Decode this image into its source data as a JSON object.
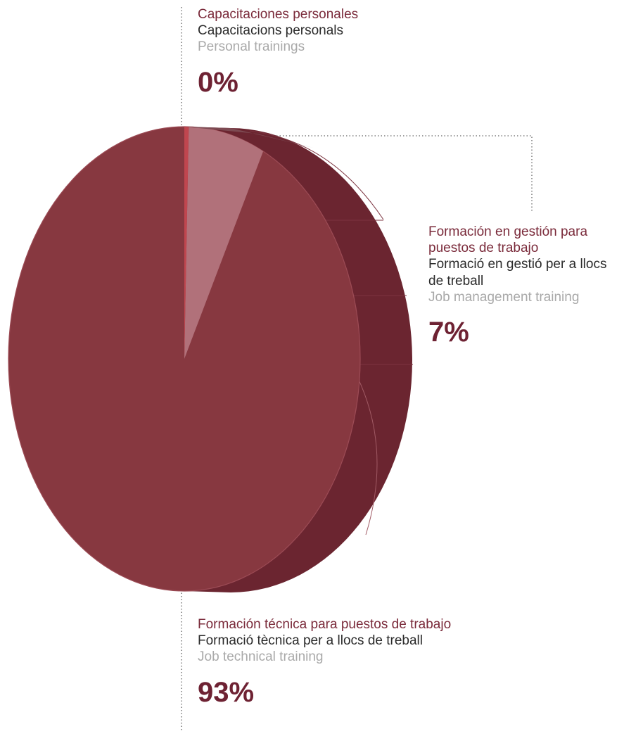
{
  "chart_data": {
    "type": "pie",
    "style": "3d",
    "colors": {
      "face": "#873840",
      "side": "#6b2530",
      "side_dark": "#5c1f29",
      "highlight_slice": "#b1717a",
      "thin_slice": "#c0464f",
      "leader": "#666666"
    },
    "slices": [
      {
        "key": "personal",
        "label_es": "Capacitaciones personales",
        "label_ca": "Capacitacions personals",
        "label_en": "Personal trainings",
        "value": 0,
        "value_label": "0%"
      },
      {
        "key": "management",
        "label_es": "Formación en gestión para puestos de trabajo",
        "label_ca": "Formació en gestió per a llocs de treball",
        "label_en": "Job management training",
        "value": 7,
        "value_label": "7%"
      },
      {
        "key": "technical",
        "label_es": "Formación técnica para puestos de trabajo",
        "label_ca": "Formació tècnica per a llocs de treball",
        "label_en": "Job technical training",
        "value": 93,
        "value_label": "93%"
      }
    ]
  }
}
